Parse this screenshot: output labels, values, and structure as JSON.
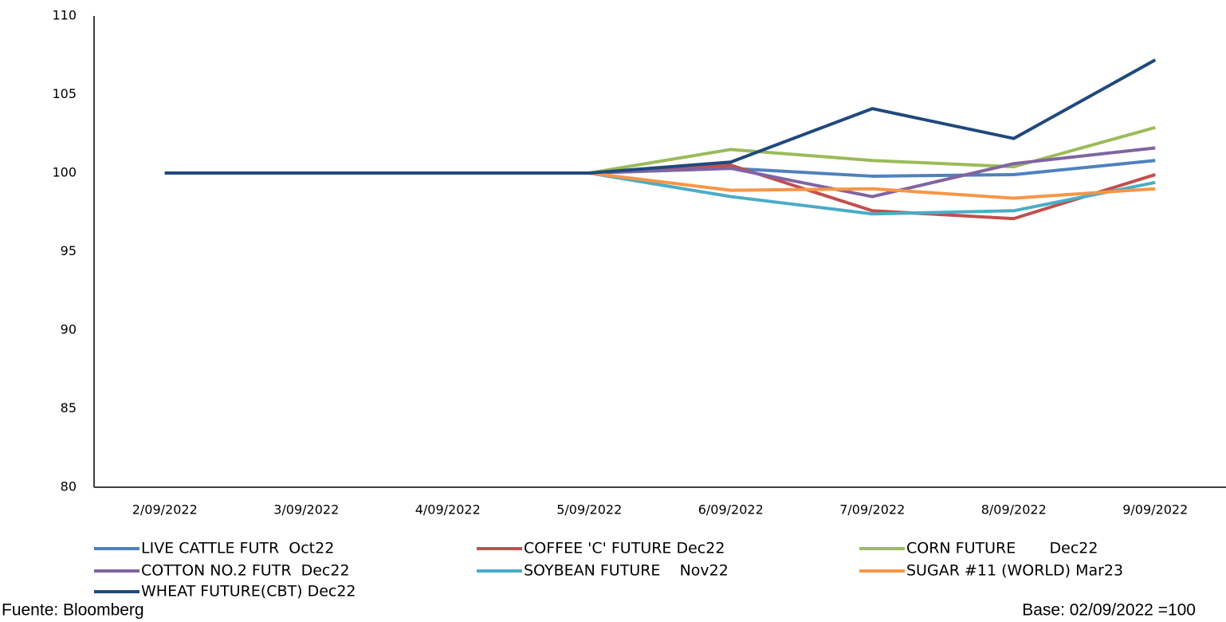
{
  "chart_data": {
    "type": "line",
    "categories": [
      "2/09/2022",
      "3/09/2022",
      "4/09/2022",
      "5/09/2022",
      "6/09/2022",
      "7/09/2022",
      "8/09/2022",
      "9/09/2022"
    ],
    "series": [
      {
        "name": "LIVE CATTLE FUTR  Oct22",
        "color": "#4f81bd",
        "values": [
          100,
          100,
          100,
          100,
          100.3,
          99.8,
          99.9,
          100.8
        ]
      },
      {
        "name": "COFFEE 'C' FUTURE Dec22",
        "color": "#c0504d",
        "values": [
          100,
          100,
          100,
          100,
          100.5,
          97.6,
          97.1,
          99.9
        ]
      },
      {
        "name": "CORN FUTURE       Dec22",
        "color": "#9bbb59",
        "values": [
          100,
          100,
          100,
          100,
          101.5,
          100.8,
          100.4,
          102.9
        ]
      },
      {
        "name": "COTTON NO.2 FUTR  Dec22",
        "color": "#8064a2",
        "values": [
          100,
          100,
          100,
          100,
          100.3,
          98.5,
          100.6,
          101.6
        ]
      },
      {
        "name": "SOYBEAN FUTURE    Nov22",
        "color": "#4bacc6",
        "values": [
          100,
          100,
          100,
          100,
          98.5,
          97.4,
          97.6,
          99.4
        ]
      },
      {
        "name": "SUGAR #11 (WORLD) Mar23",
        "color": "#f79646",
        "values": [
          100,
          100,
          100,
          100,
          98.9,
          99.0,
          98.4,
          99.0
        ]
      },
      {
        "name": "WHEAT FUTURE(CBT) Dec22",
        "color": "#1f497d",
        "values": [
          100,
          100,
          100,
          100,
          100.7,
          104.1,
          102.2,
          107.2
        ]
      }
    ],
    "ylim": [
      80,
      110
    ],
    "yticks": [
      80,
      85,
      90,
      95,
      100,
      105,
      110
    ],
    "grid": false,
    "source": "Fuente: Bloomberg",
    "note": "Base: 02/09/2022 =100"
  }
}
